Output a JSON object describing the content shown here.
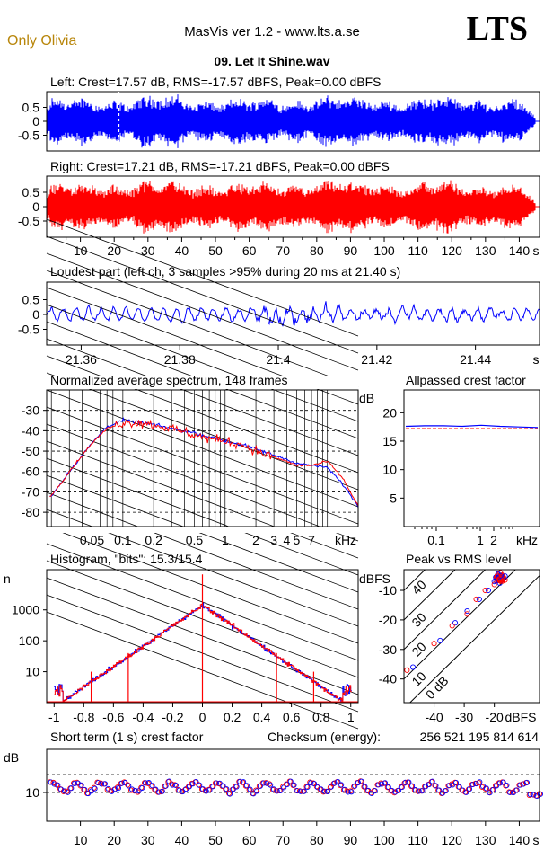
{
  "header": {
    "user_name": "Only Olivia",
    "app_title": "MasVis ver 1.2 - www.lts.a.se",
    "brand": "LTS",
    "file_name": "09. Let It Shine.wav"
  },
  "chart_data": [
    {
      "id": "left",
      "type": "line",
      "title": "Left: Crest=17.57 dB, RMS=-17.57 dBFS, Peak=0.00 dBFS",
      "crest_db": 17.57,
      "rms_dbfs": -17.57,
      "peak_dbfs": 0.0,
      "ylim": [
        -1,
        1
      ],
      "yticks": [
        "0.5",
        "0",
        "-0.5"
      ],
      "color": "#0000ff",
      "marker_s": 21.4
    },
    {
      "id": "right",
      "type": "line",
      "title": "Right: Crest=17.21 dB, RMS=-17.21 dBFS, Peak=0.00 dBFS",
      "crest_db": 17.21,
      "rms_dbfs": -17.21,
      "peak_dbfs": 0.0,
      "ylim": [
        -1,
        1
      ],
      "yticks": [
        "0.5",
        "0",
        "-0.5"
      ],
      "color": "#ff0000",
      "xticks": [
        "10",
        "20",
        "30",
        "40",
        "50",
        "60",
        "70",
        "80",
        "90",
        "100",
        "110",
        "120",
        "130",
        "140"
      ],
      "xunit": "s",
      "duration_s": 146
    },
    {
      "id": "loudest",
      "type": "line",
      "title": "Loudest part (left  ch, 3 samples >95% during 20 ms at 21.40 s)",
      "xlim": [
        21.353,
        21.453
      ],
      "ylim": [
        -1,
        1
      ],
      "yticks": [
        "0.5",
        "0",
        "-0.5"
      ],
      "xticks": [
        "21.36",
        "21.38",
        "21.4",
        "21.42",
        "21.44"
      ],
      "xunit": "s",
      "color": "#0000ff"
    },
    {
      "id": "spectrum",
      "type": "line",
      "title": "Normalized average spectrum, 148 frames",
      "ylabel": "dB",
      "xunit": "kHz",
      "yticks": [
        "-30",
        "-40",
        "-50",
        "-60",
        "-70",
        "-80"
      ],
      "xticks": [
        "0.05",
        "0.1",
        "0.2",
        "0.5",
        "1",
        "2",
        "3",
        "4",
        "5",
        "7"
      ],
      "ylim": [
        -87,
        -20
      ],
      "x": [
        0.02,
        0.03,
        0.05,
        0.07,
        0.1,
        0.15,
        0.2,
        0.3,
        0.5,
        0.7,
        1,
        1.5,
        2,
        3,
        4,
        5,
        7,
        10,
        14,
        20
      ],
      "series": [
        {
          "color": "#0000ff",
          "values": [
            -72,
            -60,
            -46,
            -38,
            -35,
            -36,
            -37,
            -39,
            -41,
            -43,
            -45,
            -47,
            -49,
            -52,
            -54,
            -56,
            -57,
            -58,
            -66,
            -77
          ]
        },
        {
          "color": "#ff0000",
          "values": [
            -72,
            -60,
            -46,
            -39,
            -36,
            -36,
            -37,
            -39,
            -42,
            -44,
            -45,
            -47,
            -50,
            -53,
            -55,
            -57,
            -57,
            -55,
            -63,
            -77
          ]
        }
      ]
    },
    {
      "id": "allpassed",
      "type": "line",
      "title": "Allpassed crest factor",
      "ylabel": "dB",
      "xunit": "kHz",
      "yticks": [
        "20",
        "15",
        "10",
        "5"
      ],
      "xticks": [
        "0.1",
        "1",
        "2"
      ],
      "ylim": [
        0,
        24
      ],
      "series": [
        {
          "color": "#0000ff",
          "values": [
            17.6,
            17.7,
            17.7,
            17.6,
            17.8,
            17.6,
            17.5,
            17.4
          ]
        },
        {
          "color": "#ff0000",
          "values": [
            17.2,
            17.2,
            17.2,
            17.2,
            17.2,
            17.2,
            17.2,
            17.2
          ]
        }
      ]
    },
    {
      "id": "histogram",
      "type": "line",
      "title": "Histogram, \"bits\": 15.3/15.4",
      "ylabel": "n",
      "yscale": "log",
      "yticks": [
        "1000",
        "100",
        "10"
      ],
      "xticks": [
        "-1",
        "-0.8",
        "-0.6",
        "-0.4",
        "-0.2",
        "0",
        "0.2",
        "0.4",
        "0.6",
        "0.8",
        "1"
      ],
      "xlim": [
        -1.05,
        1.05
      ],
      "peak_count": 1400
    },
    {
      "id": "peak_vs_rms",
      "type": "scatter",
      "title": "Peak vs RMS level",
      "ylabel": "dBFS",
      "xlabel": "dBFS",
      "yticks": [
        "-10",
        "-20",
        "-30",
        "-40"
      ],
      "xticks": [
        "-40",
        "-30",
        "-20"
      ],
      "diag_labels": [
        "40",
        "30",
        "20",
        "10",
        "0 dB"
      ],
      "xlim": [
        -50,
        -5
      ],
      "ylim": [
        -48,
        -3
      ],
      "points_blue": [
        [
          -47,
          -36
        ],
        [
          -38,
          -27
        ],
        [
          -33,
          -21
        ],
        [
          -29,
          -17
        ],
        [
          -25,
          -13
        ],
        [
          -22,
          -10
        ],
        [
          -20,
          -7
        ]
      ],
      "points_red": [
        [
          -49,
          -37
        ],
        [
          -40,
          -28
        ],
        [
          -34,
          -22
        ],
        [
          -29,
          -18
        ],
        [
          -26,
          -13
        ],
        [
          -23,
          -10
        ],
        [
          -20,
          -8
        ],
        [
          -19,
          -5
        ],
        [
          -18,
          -4
        ]
      ]
    },
    {
      "id": "short_term_crest",
      "type": "scatter",
      "title": "Short term (1 s) crest factor",
      "checksum_label": "Checksum (energy):",
      "checksum_value": "256 521 195 814 614",
      "ylabel": "dB",
      "ytick": "10",
      "xunit": "s",
      "xticks": [
        "10",
        "20",
        "30",
        "40",
        "50",
        "60",
        "70",
        "80",
        "90",
        "100",
        "110",
        "120",
        "130",
        "140"
      ],
      "level_db": 11.5
    }
  ]
}
